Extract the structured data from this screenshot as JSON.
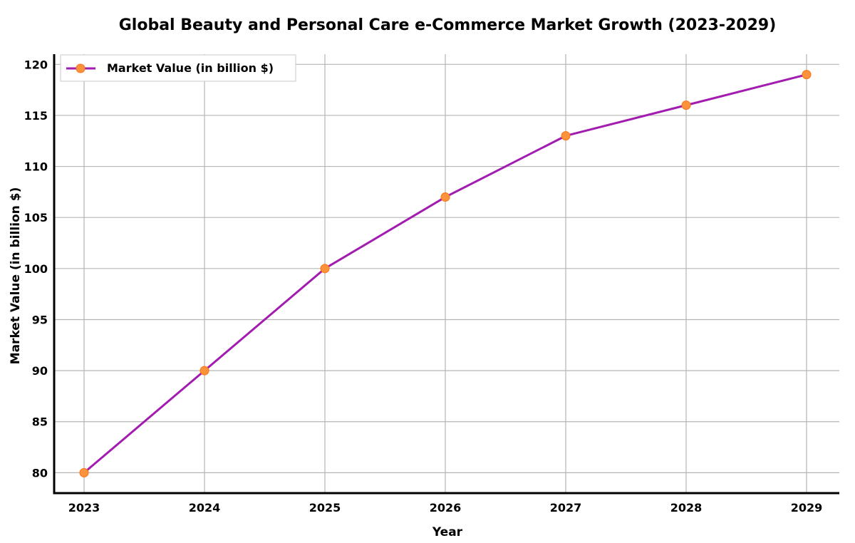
{
  "chart_data": {
    "type": "line",
    "title": "Global Beauty and Personal Care e-Commerce Market Growth (2023-2029)",
    "xlabel": "Year",
    "ylabel": "Market Value (in billion $)",
    "categories": [
      "2023",
      "2024",
      "2025",
      "2026",
      "2027",
      "2028",
      "2029"
    ],
    "series": [
      {
        "name": "Market Value (in billion $)",
        "values": [
          80,
          90,
          100,
          107,
          113,
          116,
          119
        ]
      }
    ],
    "ylim": [
      78,
      121
    ],
    "yticks": [
      "80",
      "85",
      "90",
      "95",
      "100",
      "105",
      "110",
      "115",
      "120"
    ],
    "grid": true,
    "legend_position": "top-left",
    "colors": {
      "line": "#a21caf",
      "marker": "#fb923c"
    }
  }
}
